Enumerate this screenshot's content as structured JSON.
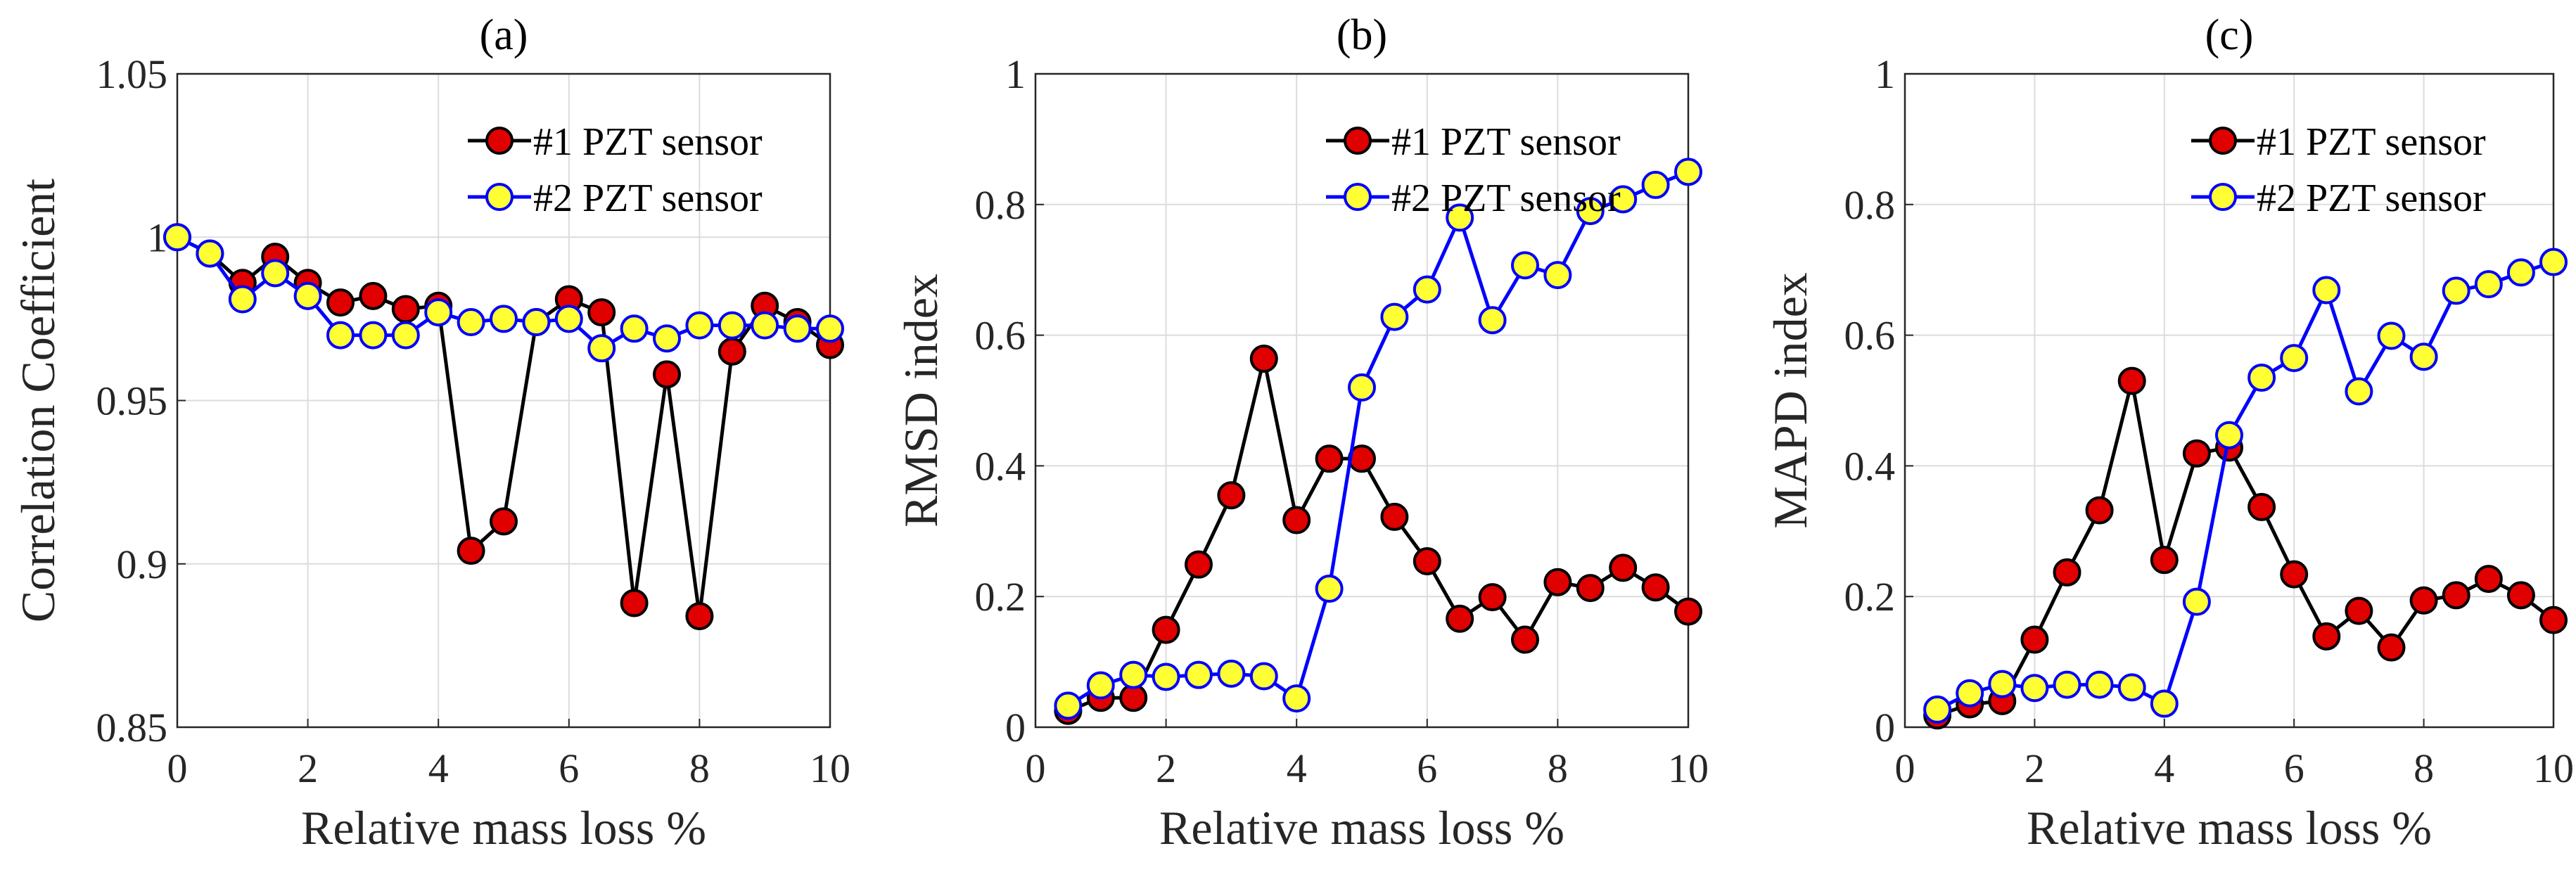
{
  "colors": {
    "series1_line": "#000000",
    "series1_fill": "#e00000",
    "series2_line": "#0000ff",
    "series2_fill": "#ffff33",
    "grid": "#dcdcdc"
  },
  "chart_data": [
    {
      "type": "line",
      "title": "(a)",
      "xlabel": "Relative mass loss %",
      "ylabel": "Correlation Coefficient",
      "xlim": [
        0,
        10
      ],
      "ylim": [
        0.85,
        1.05
      ],
      "xticks": [
        0,
        2,
        4,
        6,
        8,
        10
      ],
      "xtick_labels": [
        "0",
        "2",
        "4",
        "6",
        "8",
        "10"
      ],
      "yticks": [
        0.85,
        0.9,
        0.95,
        1.0,
        1.05
      ],
      "ytick_labels": [
        "0.85",
        "0.9",
        "0.95",
        "1",
        "1.05"
      ],
      "grid": true,
      "legend_position": "top-right",
      "x": [
        0,
        0.5,
        1,
        1.5,
        2,
        2.5,
        3,
        3.5,
        4,
        4.5,
        5,
        5.5,
        6,
        6.5,
        7,
        7.5,
        8,
        8.5,
        9,
        9.5,
        10
      ],
      "series": [
        {
          "name": "#1 PZT sensor",
          "values": [
            1.0,
            0.995,
            0.986,
            0.994,
            0.986,
            0.98,
            0.982,
            0.978,
            0.979,
            0.904,
            0.913,
            0.974,
            0.981,
            0.977,
            0.888,
            0.958,
            0.884,
            0.965,
            0.979,
            0.974,
            0.967
          ]
        },
        {
          "name": "#2 PZT sensor",
          "values": [
            1.0,
            0.995,
            0.981,
            0.989,
            0.982,
            0.97,
            0.97,
            0.97,
            0.977,
            0.974,
            0.975,
            0.974,
            0.975,
            0.966,
            0.972,
            0.969,
            0.973,
            0.973,
            0.973,
            0.972,
            0.972
          ]
        }
      ]
    },
    {
      "type": "line",
      "title": "(b)",
      "xlabel": "Relative mass loss %",
      "ylabel": "RMSD index",
      "xlim": [
        0,
        10
      ],
      "ylim": [
        0,
        1
      ],
      "xticks": [
        0,
        2,
        4,
        6,
        8,
        10
      ],
      "xtick_labels": [
        "0",
        "2",
        "4",
        "6",
        "8",
        "10"
      ],
      "yticks": [
        0,
        0.2,
        0.4,
        0.6,
        0.8,
        1
      ],
      "ytick_labels": [
        "0",
        "0.2",
        "0.4",
        "0.6",
        "0.8",
        "1"
      ],
      "grid": true,
      "legend_position": "top-right",
      "x": [
        0.5,
        1,
        1.5,
        2,
        2.5,
        3,
        3.5,
        4,
        4.5,
        5,
        5.5,
        6,
        6.5,
        7,
        7.5,
        8,
        8.5,
        9,
        9.5,
        10
      ],
      "series": [
        {
          "name": "#1 PZT sensor",
          "values": [
            0.025,
            0.045,
            0.045,
            0.149,
            0.249,
            0.355,
            0.564,
            0.317,
            0.411,
            0.411,
            0.322,
            0.254,
            0.166,
            0.199,
            0.134,
            0.222,
            0.213,
            0.244,
            0.214,
            0.177
          ]
        },
        {
          "name": "#2 PZT sensor",
          "values": [
            0.033,
            0.064,
            0.08,
            0.077,
            0.08,
            0.082,
            0.078,
            0.044,
            0.212,
            0.52,
            0.628,
            0.67,
            0.78,
            0.623,
            0.707,
            0.692,
            0.79,
            0.808,
            0.83,
            0.85
          ]
        }
      ]
    },
    {
      "type": "line",
      "title": "(c)",
      "xlabel": "Relative mass loss %",
      "ylabel": "MAPD index",
      "xlim": [
        0,
        10
      ],
      "ylim": [
        0,
        1
      ],
      "xticks": [
        0,
        2,
        4,
        6,
        8,
        10
      ],
      "xtick_labels": [
        "0",
        "2",
        "4",
        "6",
        "8",
        "10"
      ],
      "yticks": [
        0,
        0.2,
        0.4,
        0.6,
        0.8,
        1
      ],
      "ytick_labels": [
        "0",
        "0.2",
        "0.4",
        "0.6",
        "0.8",
        "1"
      ],
      "grid": true,
      "legend_position": "top-right",
      "x": [
        0.5,
        1,
        1.5,
        2,
        2.5,
        3,
        3.5,
        4,
        4.5,
        5,
        5.5,
        6,
        6.5,
        7,
        7.5,
        8,
        8.5,
        9,
        9.5,
        10
      ],
      "series": [
        {
          "name": "#1 PZT sensor",
          "values": [
            0.018,
            0.035,
            0.04,
            0.134,
            0.237,
            0.332,
            0.53,
            0.256,
            0.419,
            0.428,
            0.337,
            0.234,
            0.139,
            0.178,
            0.122,
            0.194,
            0.202,
            0.227,
            0.202,
            0.164
          ]
        },
        {
          "name": "#2 PZT sensor",
          "values": [
            0.027,
            0.052,
            0.066,
            0.06,
            0.065,
            0.065,
            0.061,
            0.036,
            0.192,
            0.447,
            0.535,
            0.565,
            0.669,
            0.514,
            0.599,
            0.567,
            0.668,
            0.678,
            0.696,
            0.712
          ]
        }
      ]
    }
  ]
}
